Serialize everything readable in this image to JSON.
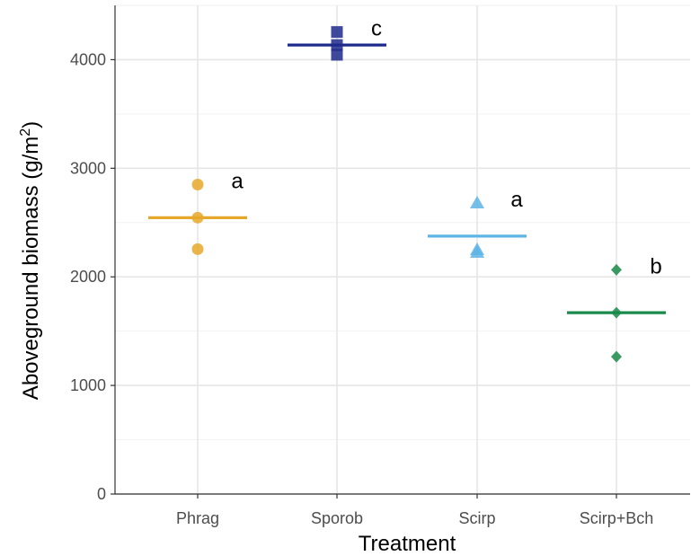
{
  "chart_data": {
    "type": "scatter",
    "xlabel": "Treatment",
    "ylabel_main": "Aboveground biomass",
    "ylabel_unit_prefix": "(g/m",
    "ylabel_unit_sup": "2",
    "ylabel_unit_suffix": ")",
    "categories": [
      "Phrag",
      "Sporob",
      "Scirp",
      "Scirp+Bch"
    ],
    "ylim": [
      0,
      4500
    ],
    "yticks": [
      0,
      1000,
      2000,
      3000,
      4000
    ],
    "yticks_minor": [
      500,
      1500,
      2500,
      3500,
      4500
    ],
    "grid": true,
    "legend": "none",
    "series": [
      {
        "category": "Phrag",
        "shape": "circle",
        "color": "#E6A82A",
        "values": [
          2850,
          2545,
          2255
        ],
        "mean": 2545,
        "letter": "a"
      },
      {
        "category": "Sporob",
        "shape": "square",
        "color": "#1E2A8C",
        "values": [
          4255,
          4135,
          4045
        ],
        "mean": 4135,
        "letter": "c"
      },
      {
        "category": "Scirp",
        "shape": "triangle",
        "color": "#5DB4E5",
        "values": [
          2680,
          2250,
          2225
        ],
        "mean": 2375,
        "letter": "a"
      },
      {
        "category": "Scirp+Bch",
        "shape": "diamond",
        "color": "#1A8A4A",
        "values": [
          2065,
          1670,
          1265
        ],
        "mean": 1670,
        "letter": "b"
      }
    ]
  }
}
